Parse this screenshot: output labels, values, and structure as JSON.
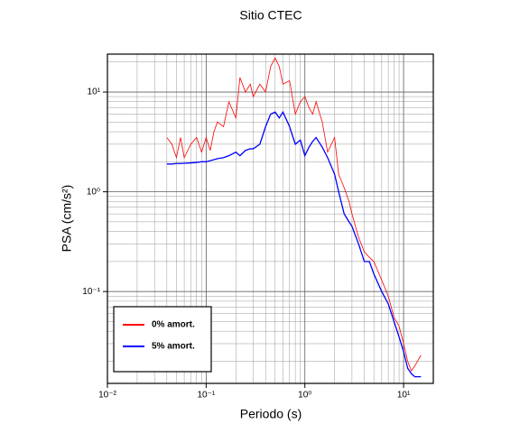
{
  "chart_data": {
    "type": "line",
    "title": "Sitio CTEC",
    "x_label": "Periodo (s)",
    "y_label": "PSA (cm/s²)",
    "x": [
      0.04,
      0.045,
      0.05,
      0.055,
      0.06,
      0.07,
      0.08,
      0.09,
      0.1,
      0.11,
      0.12,
      0.13,
      0.15,
      0.17,
      0.2,
      0.22,
      0.25,
      0.28,
      0.3,
      0.35,
      0.4,
      0.45,
      0.5,
      0.55,
      0.6,
      0.7,
      0.8,
      0.9,
      1.0,
      1.1,
      1.2,
      1.3,
      1.5,
      1.7,
      2.0,
      2.2,
      2.5,
      2.8,
      3.0,
      3.5,
      4.0,
      4.5,
      5.0,
      6,
      7,
      8,
      9,
      10,
      11,
      12,
      13,
      15
    ],
    "series": [
      {
        "name": "0% amort.",
        "color": "#ff0000",
        "width": 0.8,
        "values": [
          3.5,
          3.0,
          2.2,
          3.5,
          2.2,
          3.0,
          3.5,
          2.5,
          3.5,
          2.6,
          4.0,
          5.0,
          4.5,
          8,
          5.5,
          14,
          10,
          12,
          9,
          12,
          10,
          18,
          22,
          18,
          12,
          13,
          6,
          8,
          9,
          7,
          6,
          8,
          5,
          2.5,
          3.5,
          1.5,
          1.1,
          0.8,
          0.6,
          0.35,
          0.25,
          0.22,
          0.2,
          0.13,
          0.09,
          0.055,
          0.045,
          0.03,
          0.02,
          0.016,
          0.018,
          0.023
        ]
      },
      {
        "name": "5% amort.",
        "color": "#0000ff",
        "width": 1.3,
        "values": [
          1.9,
          1.9,
          1.92,
          1.92,
          1.93,
          1.95,
          1.97,
          2.0,
          2.0,
          2.05,
          2.1,
          2.15,
          2.2,
          2.3,
          2.5,
          2.3,
          2.6,
          2.7,
          2.7,
          3.0,
          4.5,
          6.0,
          6.3,
          5.5,
          6.3,
          4.5,
          3.0,
          3.3,
          2.3,
          2.8,
          3.2,
          3.5,
          2.8,
          2.2,
          1.5,
          1.0,
          0.6,
          0.5,
          0.45,
          0.3,
          0.2,
          0.2,
          0.15,
          0.1,
          0.075,
          0.05,
          0.035,
          0.025,
          0.017,
          0.015,
          0.014,
          0.014
        ]
      }
    ],
    "xlim": [
      0.01,
      20
    ],
    "ylim": [
      0.012,
      24
    ],
    "log_x": true,
    "log_y": true,
    "grid": true,
    "xticks": [
      {
        "value": 0.01,
        "label": "10⁻²"
      },
      {
        "value": 0.1,
        "label": "10⁻¹"
      },
      {
        "value": 1,
        "label": "10⁰"
      },
      {
        "value": 10,
        "label": "10¹"
      }
    ],
    "yticks": [
      {
        "value": 0.1,
        "label": "10⁻¹"
      },
      {
        "value": 1,
        "label": "10⁰"
      },
      {
        "value": 10,
        "label": "10¹"
      }
    ],
    "legend": "lower left"
  }
}
